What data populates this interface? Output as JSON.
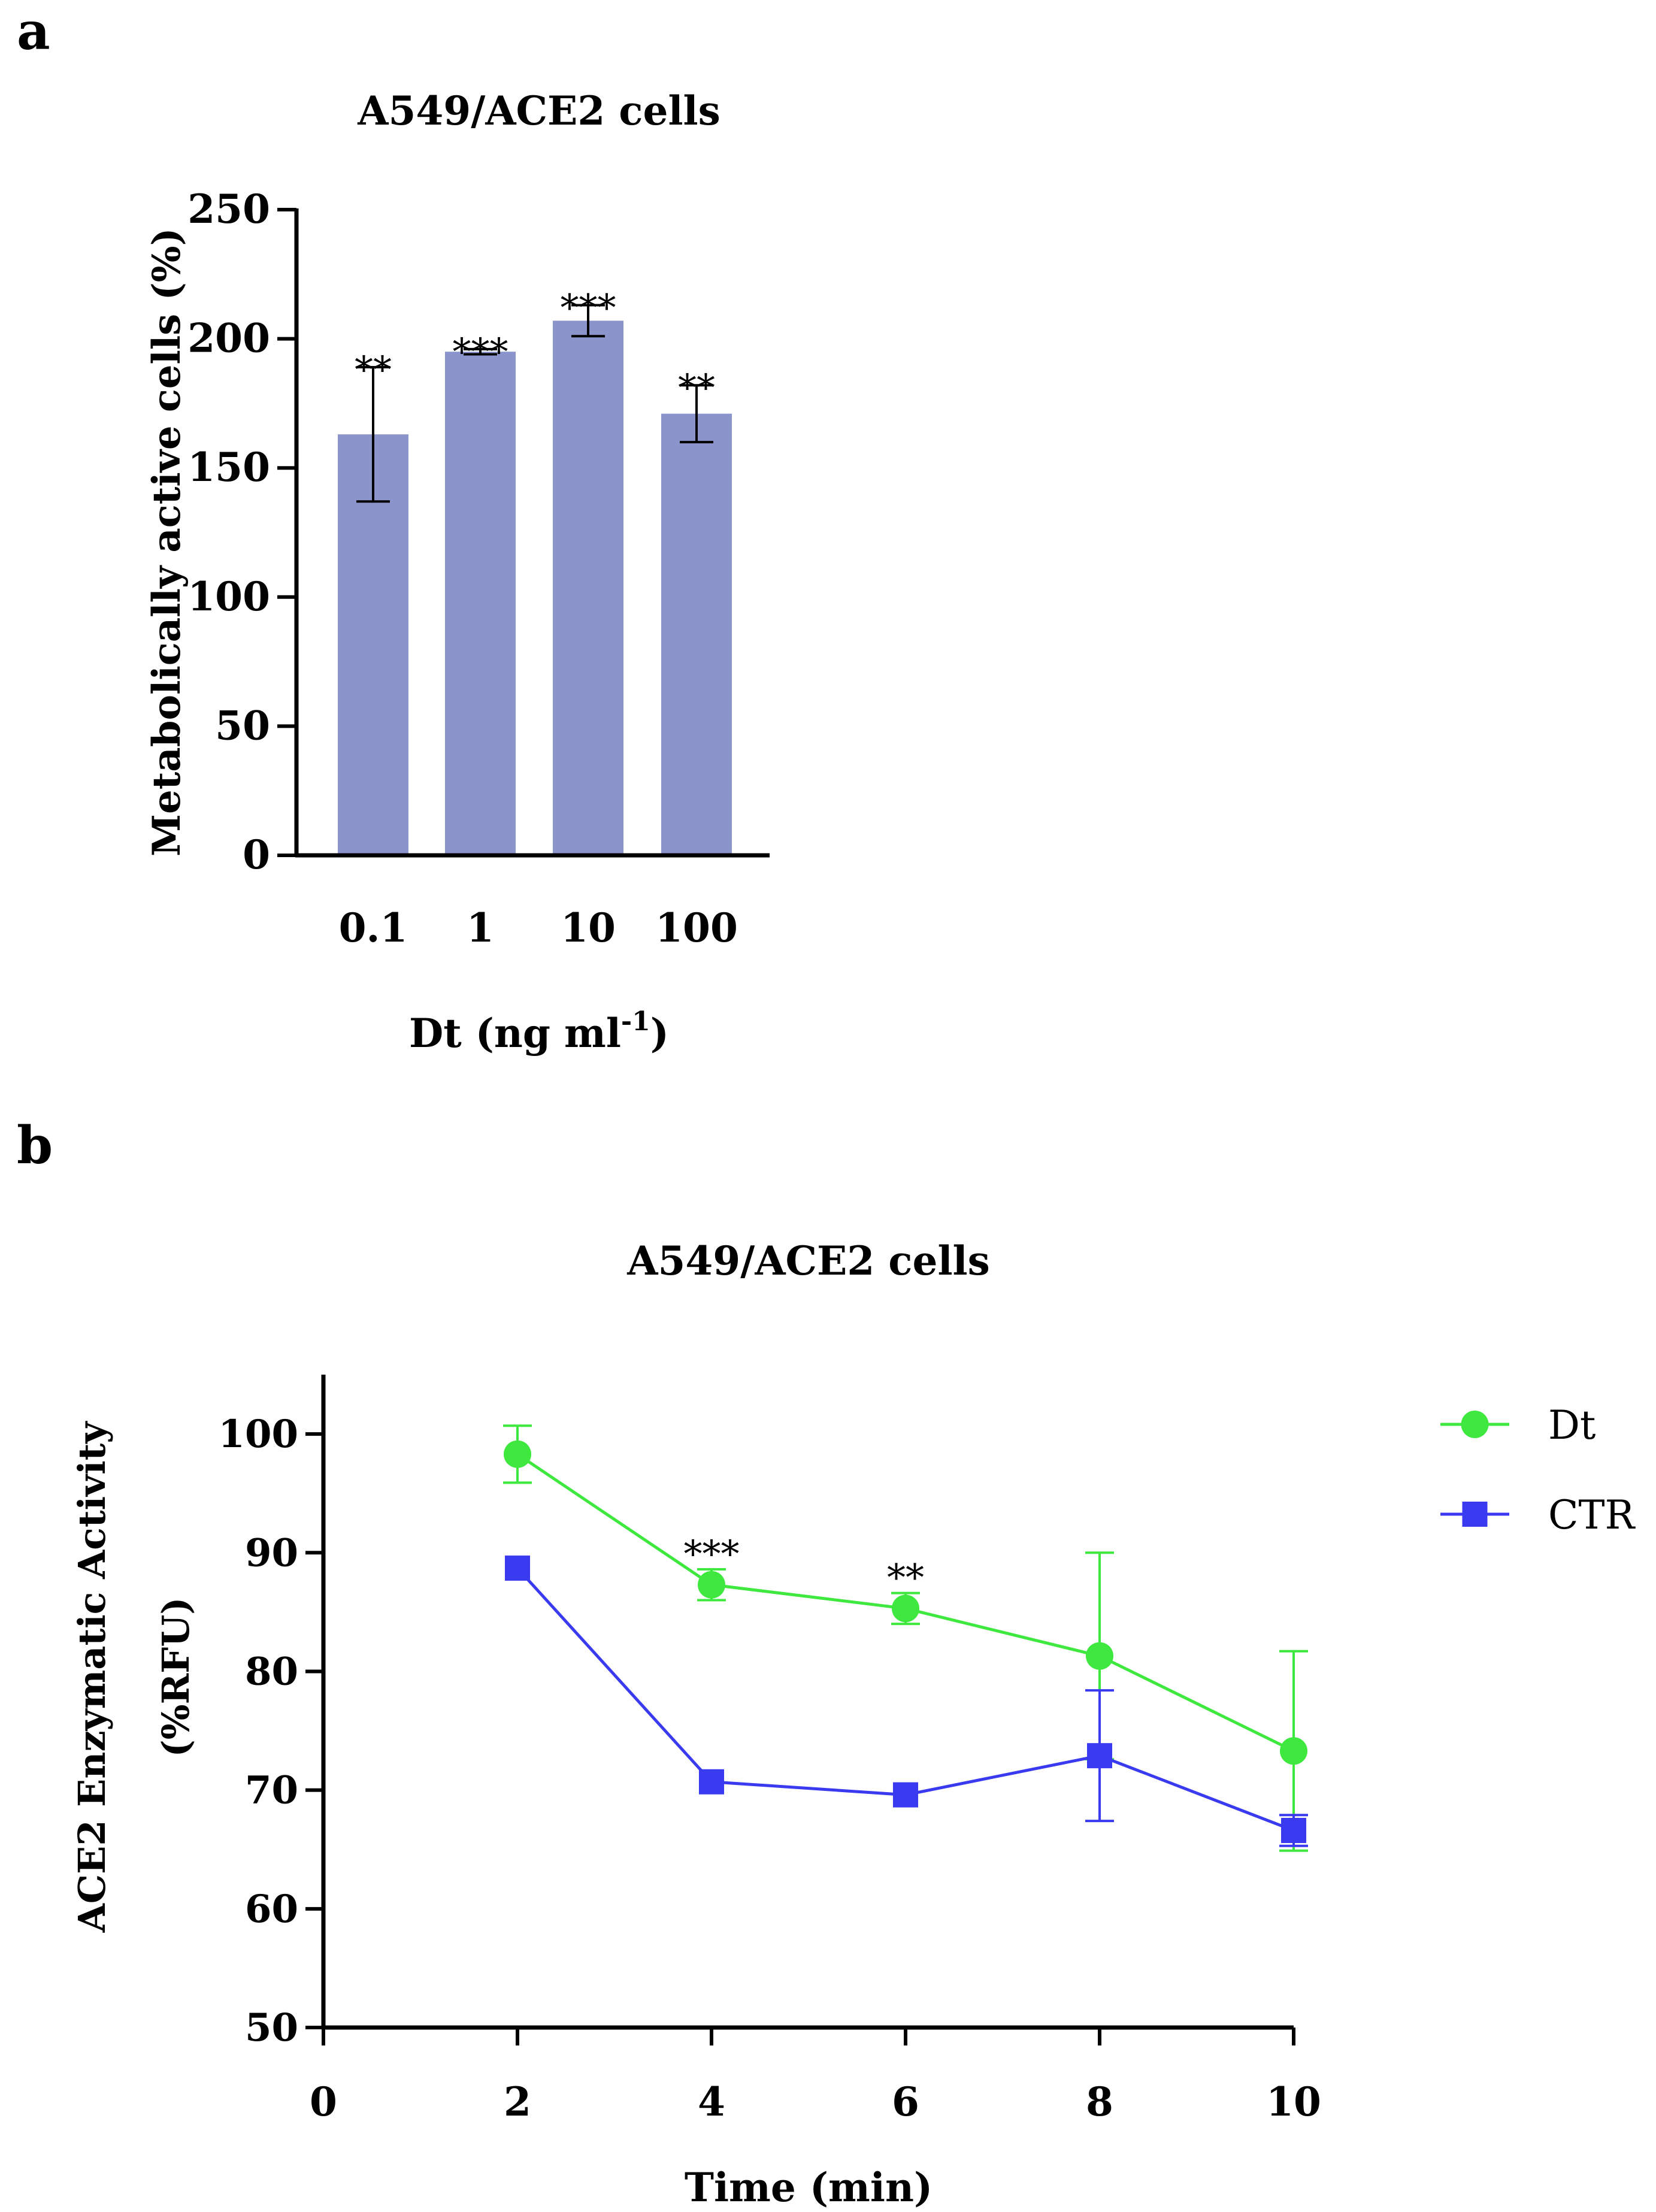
{
  "panels": {
    "a": {
      "label": "a"
    },
    "b": {
      "label": "b"
    }
  },
  "chart_data": [
    {
      "panel": "a",
      "type": "bar",
      "title": "A549/ACE2 cells",
      "xlabel_main": "Dt (ng ml",
      "xlabel_sup": "-1",
      "xlabel_end": ")",
      "ylabel": "Metabolically active cells (%)",
      "categories": [
        "0.1",
        "1",
        "10",
        "100"
      ],
      "values": [
        163,
        195,
        207,
        171
      ],
      "errors": [
        26,
        1,
        6,
        11
      ],
      "annotations": [
        "**",
        "***",
        "***",
        "**"
      ],
      "ylim": [
        0,
        250
      ],
      "yticks": [
        "0",
        "50",
        "100",
        "150",
        "200",
        "250"
      ],
      "bar_color": "#8c95cb"
    },
    {
      "panel": "b",
      "type": "line",
      "title": "A549/ACE2 cells",
      "xlabel": "Time (min)",
      "ylabel_line1": "ACE2 Enzymatic Activity",
      "ylabel_line2": "(%RFU)",
      "xlim": [
        0,
        10
      ],
      "ylim": [
        50,
        105
      ],
      "xticks": [
        "0",
        "2",
        "4",
        "6",
        "8",
        "10"
      ],
      "yticks": [
        "50",
        "60",
        "70",
        "80",
        "90",
        "100"
      ],
      "series": [
        {
          "name": "Dt",
          "color": "#3ee83e",
          "marker": "circle",
          "x": [
            2,
            4,
            6,
            8,
            10
          ],
          "y": [
            98.3,
            87.3,
            85.3,
            81.3,
            73.3
          ],
          "err": [
            2.4,
            1.3,
            1.3,
            8.7,
            8.4
          ]
        },
        {
          "name": "CTR",
          "color": "#3a3af0",
          "marker": "square",
          "x": [
            2,
            4,
            6,
            8,
            10
          ],
          "y": [
            88.7,
            70.7,
            69.6,
            72.9,
            66.6
          ],
          "err": [
            0,
            0,
            0,
            5.5,
            1.3
          ]
        }
      ],
      "annotations": [
        {
          "x": 4,
          "text": "***"
        },
        {
          "x": 6,
          "text": "**"
        }
      ]
    }
  ]
}
